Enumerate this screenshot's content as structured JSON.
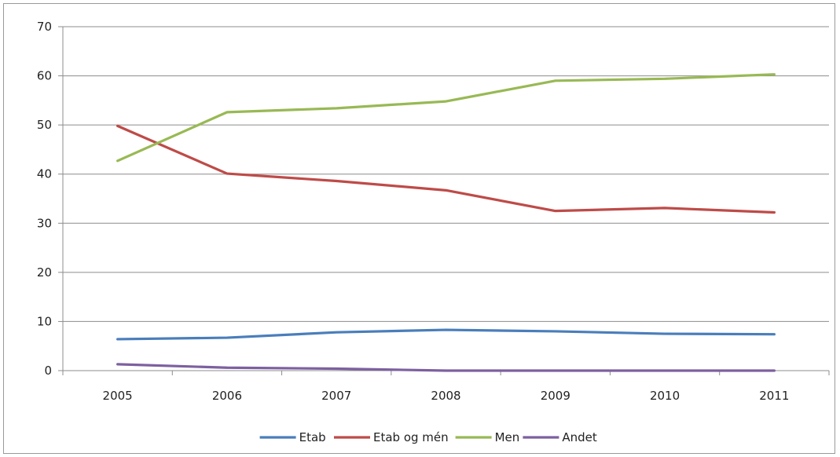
{
  "chart_data": {
    "type": "line",
    "title": "",
    "xlabel": "",
    "ylabel": "",
    "categories": [
      "2005",
      "2006",
      "2007",
      "2008",
      "2009",
      "2010",
      "2011"
    ],
    "ylim": [
      0,
      70
    ],
    "yticks": [
      "0",
      "10",
      "20",
      "30",
      "40",
      "50",
      "60",
      "70"
    ],
    "grid": "horizontal",
    "legend_position": "bottom",
    "series": [
      {
        "name": "Etab",
        "color": "#4a7ebb",
        "values": [
          6.4,
          6.7,
          7.8,
          8.3,
          8.0,
          7.5,
          7.4
        ]
      },
      {
        "name": "Etab og mén",
        "color": "#be4b48",
        "values": [
          49.8,
          40.1,
          38.6,
          36.7,
          32.5,
          33.1,
          32.2
        ]
      },
      {
        "name": "Men",
        "color": "#98b954",
        "values": [
          42.7,
          52.6,
          53.4,
          54.8,
          59.0,
          59.4,
          60.3
        ]
      },
      {
        "name": "Andet",
        "color": "#7d60a0",
        "values": [
          1.3,
          0.6,
          0.4,
          0.0,
          0.0,
          0.0,
          0.0
        ]
      }
    ]
  }
}
